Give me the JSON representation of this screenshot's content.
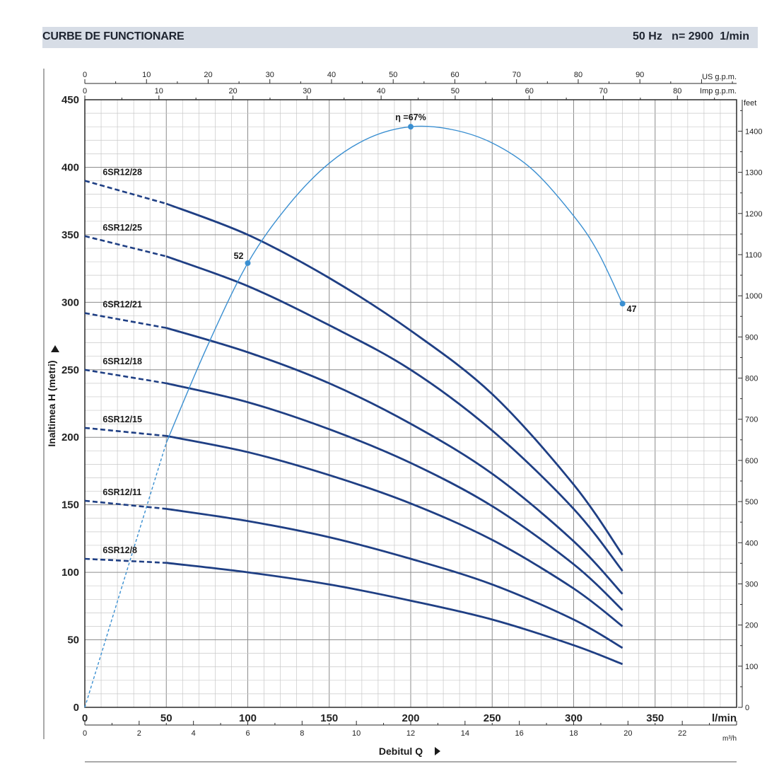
{
  "header": {
    "title": "CURBE DE FUNCTIONARE",
    "spec": "50 Hz   n= 2900  1/min"
  },
  "chart_data": {
    "type": "line",
    "xlabel": "Debitul Q",
    "ylabel": "Inaltimea H (metri)",
    "x_unit": "l/min",
    "xlim": [
      0,
      400
    ],
    "ylim": [
      0,
      450
    ],
    "x_ticks": [
      0,
      50,
      100,
      150,
      200,
      250,
      300,
      350
    ],
    "y_ticks": [
      0,
      50,
      100,
      150,
      200,
      250,
      300,
      350,
      400,
      450
    ],
    "secondary_axes": {
      "top_us": {
        "unit": "US g.p.m.",
        "ticks": [
          0,
          10,
          20,
          30,
          40,
          50,
          60,
          70,
          80,
          90
        ]
      },
      "top_imp": {
        "unit": "Imp g.p.m.",
        "ticks": [
          0,
          10,
          20,
          30,
          40,
          50,
          60,
          70,
          80
        ]
      },
      "bottom_m3h": {
        "unit": "m³/h",
        "ticks": [
          0,
          2,
          4,
          6,
          8,
          10,
          12,
          14,
          16,
          18,
          20,
          22
        ]
      },
      "right_feet": {
        "unit": "feet",
        "ticks": [
          0,
          100,
          200,
          300,
          400,
          500,
          600,
          700,
          800,
          900,
          1000,
          1100,
          1200,
          1300,
          1400
        ]
      }
    },
    "grid": true,
    "solid_from_x": 50,
    "series": [
      {
        "name": "6SR12/28",
        "x": [
          0,
          50,
          100,
          150,
          200,
          250,
          300,
          330
        ],
        "y": [
          390,
          373,
          350,
          318,
          279,
          232,
          165,
          113
        ]
      },
      {
        "name": "6SR12/25",
        "x": [
          0,
          50,
          100,
          150,
          200,
          250,
          300,
          330
        ],
        "y": [
          349,
          334,
          312,
          283,
          250,
          205,
          147,
          101
        ]
      },
      {
        "name": "6SR12/21",
        "x": [
          0,
          50,
          100,
          150,
          200,
          250,
          300,
          330
        ],
        "y": [
          292,
          281,
          263,
          240,
          210,
          173,
          123,
          84
        ]
      },
      {
        "name": "6SR12/18",
        "x": [
          0,
          50,
          100,
          150,
          200,
          250,
          300,
          330
        ],
        "y": [
          250,
          240,
          226,
          206,
          181,
          149,
          106,
          72
        ]
      },
      {
        "name": "6SR12/15",
        "x": [
          0,
          50,
          100,
          150,
          200,
          250,
          300,
          330
        ],
        "y": [
          207,
          201,
          189,
          172,
          151,
          124,
          88,
          60
        ]
      },
      {
        "name": "6SR12/11",
        "x": [
          0,
          50,
          100,
          150,
          200,
          250,
          300,
          330
        ],
        "y": [
          153,
          147,
          138,
          126,
          110,
          91,
          65,
          44
        ]
      },
      {
        "name": "6SR12/8",
        "x": [
          0,
          50,
          100,
          150,
          200,
          250,
          300,
          330
        ],
        "y": [
          110,
          107,
          100,
          91,
          79,
          65,
          46,
          32
        ]
      }
    ],
    "efficiency_curve": {
      "name": "η",
      "x": [
        0,
        25,
        50,
        75,
        100,
        125,
        150,
        175,
        200,
        225,
        250,
        275,
        300,
        315,
        330
      ],
      "y": [
        0,
        98,
        196,
        267,
        329,
        372,
        403,
        422,
        430,
        428,
        418,
        398,
        364,
        337,
        299
      ],
      "dashed_until_x": 50,
      "markers": [
        {
          "x": 100,
          "y": 329,
          "label": "52"
        },
        {
          "x": 200,
          "y": 430,
          "label": "η =67%"
        },
        {
          "x": 330,
          "y": 299,
          "label": "47"
        }
      ]
    },
    "colors": {
      "pump": "#1f3f84",
      "efficiency": "#3a8fd1",
      "grid": "#bfbfbf"
    }
  }
}
